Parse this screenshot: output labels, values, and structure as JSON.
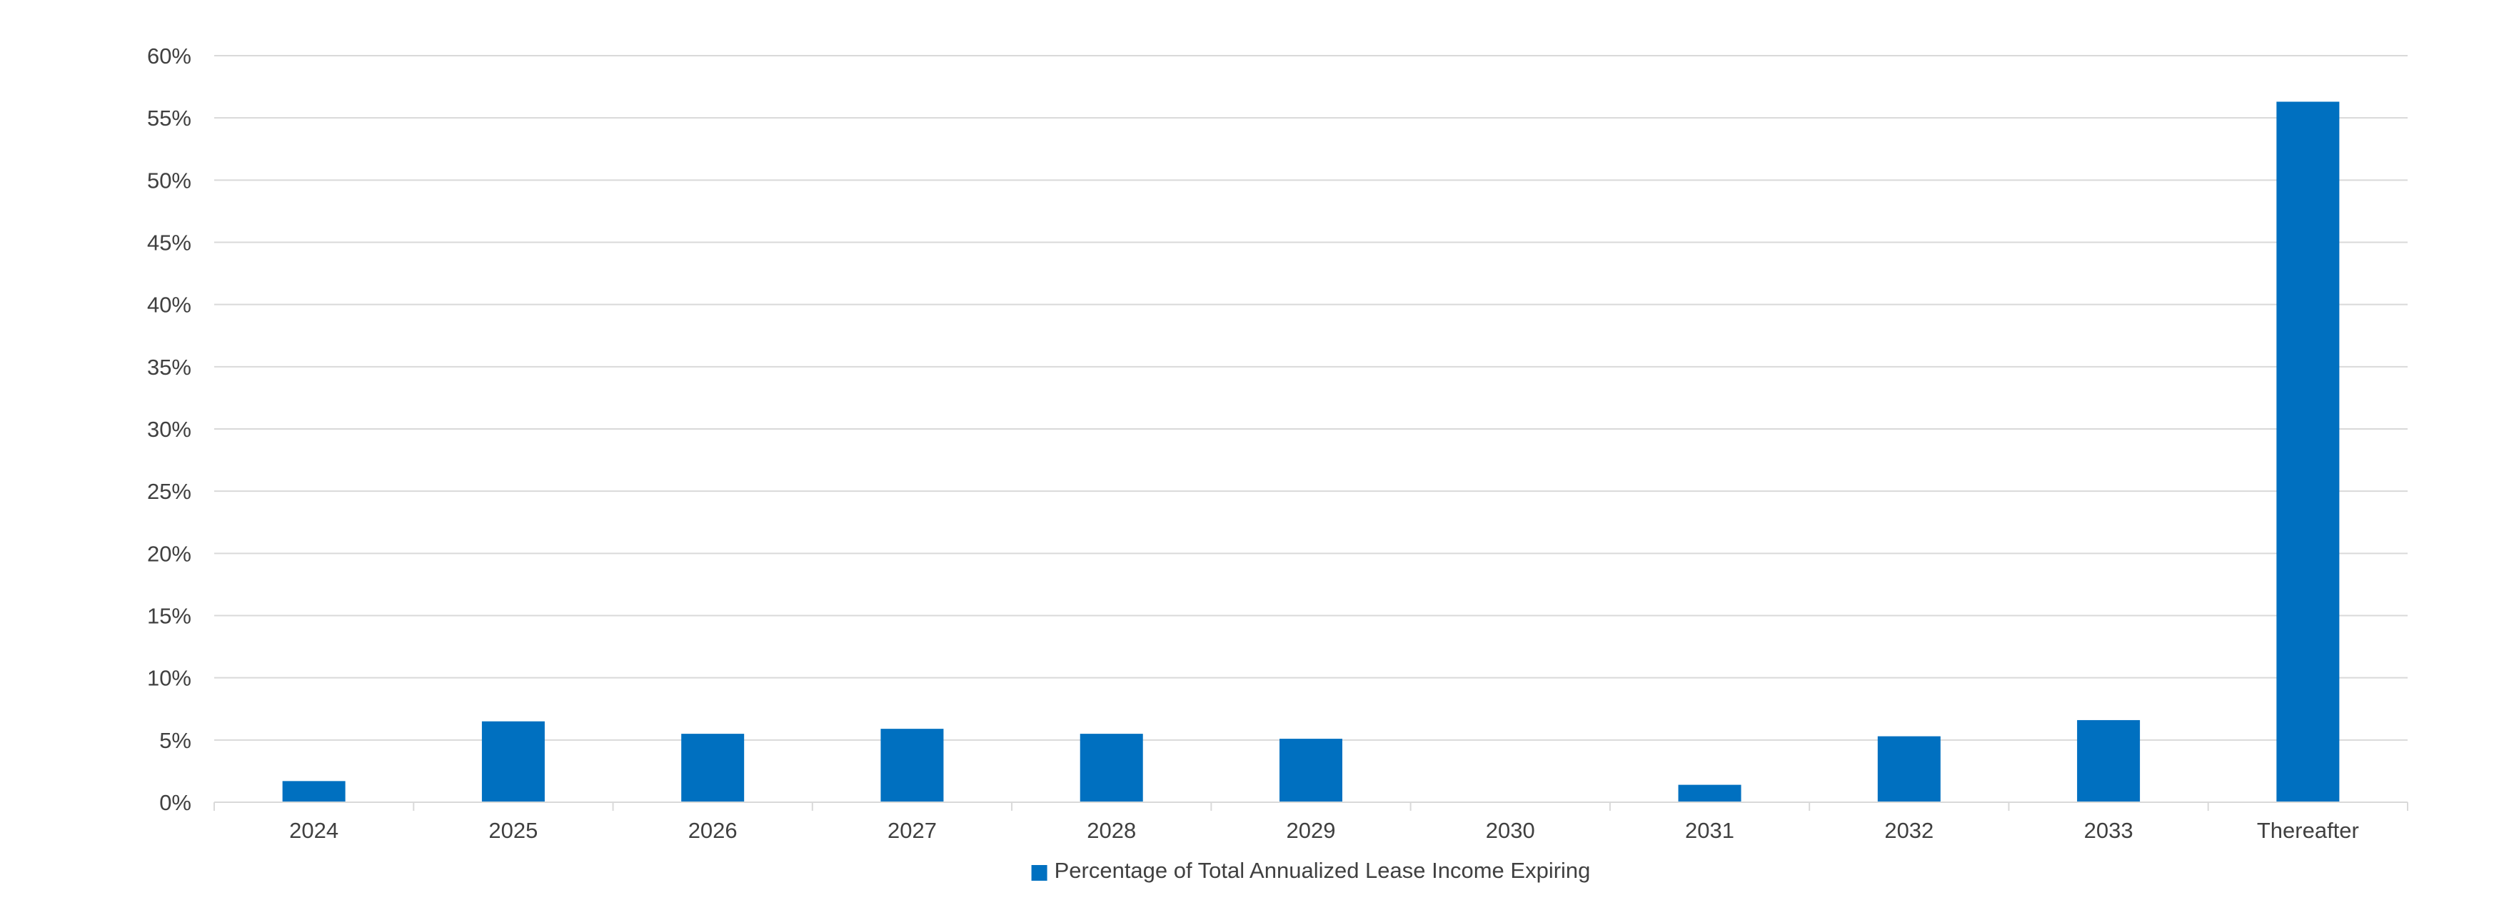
{
  "chart_data": {
    "type": "bar",
    "categories": [
      "2024",
      "2025",
      "2026",
      "2027",
      "2028",
      "2029",
      "2030",
      "2031",
      "2032",
      "2033",
      "Thereafter"
    ],
    "series": [
      {
        "name": "Percentage of Total Annualized Lease Income Expiring",
        "values": [
          1.7,
          6.5,
          5.5,
          5.9,
          5.5,
          5.1,
          0,
          1.4,
          5.3,
          6.6,
          56.3
        ],
        "color": "#0070c0"
      }
    ],
    "title": "",
    "xlabel": "",
    "ylabel": "",
    "ylim": [
      0,
      60
    ],
    "y_ticks": [
      "0%",
      "5%",
      "10%",
      "15%",
      "20%",
      "25%",
      "30%",
      "35%",
      "40%",
      "45%",
      "50%",
      "55%",
      "60%"
    ],
    "grid": true,
    "legend_position": "bottom"
  }
}
